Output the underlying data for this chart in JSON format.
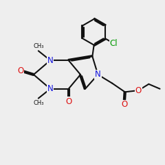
{
  "bg_color": "#eeeeee",
  "bond_color": "#111111",
  "N_color": "#1111dd",
  "O_color": "#dd1111",
  "Cl_color": "#009900",
  "lw": 1.5,
  "dbo": 0.055,
  "fs": 8.5
}
